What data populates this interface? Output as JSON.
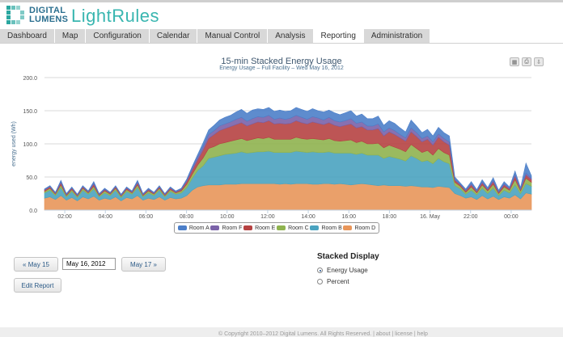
{
  "header": {
    "logo_line1": "DIGITAL",
    "logo_line2": "LUMENS",
    "app_name": "LightRules"
  },
  "tabs": [
    {
      "label": "Dashboard"
    },
    {
      "label": "Map"
    },
    {
      "label": "Configuration"
    },
    {
      "label": "Calendar"
    },
    {
      "label": "Manual Control"
    },
    {
      "label": "Analysis"
    },
    {
      "label": "Reporting",
      "active": true
    },
    {
      "label": "Administration"
    }
  ],
  "chart_data": {
    "type": "area",
    "stacked": true,
    "title": "15-min Stacked Energy Usage",
    "subtitle": "Energy Usage – Full Facility – Wed May 16, 2012",
    "ylabel": "energy used (Wh)",
    "ylim": [
      0,
      200
    ],
    "yticks": [
      "0.0",
      "50.0",
      "100.0",
      "150.0",
      "200.0"
    ],
    "xtick_labels": [
      "02:00",
      "04:00",
      "06:00",
      "08:00",
      "10:00",
      "12:00",
      "14:00",
      "16:00",
      "18:00",
      "16. May",
      "22:00",
      "00:00"
    ],
    "xtick_positions_hours": [
      2,
      4,
      6,
      8,
      10,
      12,
      14,
      16,
      18,
      20,
      22,
      24
    ],
    "x_range_hours": [
      1,
      25
    ],
    "grid": true,
    "legend_position": "bottom",
    "series": [
      {
        "name": "Room D",
        "color": "#e8965a",
        "values": [
          18,
          20,
          16,
          22,
          15,
          19,
          14,
          20,
          17,
          21,
          15,
          18,
          16,
          20,
          14,
          19,
          17,
          22,
          15,
          18,
          16,
          20,
          15,
          19,
          17,
          18,
          22,
          30,
          35,
          37,
          38,
          38,
          38,
          39,
          39,
          39,
          40,
          40,
          40,
          40,
          40,
          40,
          40,
          39,
          40,
          39,
          40,
          40,
          40,
          39,
          39,
          40,
          40,
          39,
          40,
          39,
          38,
          39,
          40,
          39,
          38,
          37,
          38,
          37,
          37,
          37,
          36,
          37,
          36,
          35,
          35,
          34,
          36,
          35,
          34,
          25,
          22,
          18,
          20,
          16,
          22,
          17,
          21,
          16,
          20,
          18,
          23,
          17,
          26,
          24
        ]
      },
      {
        "name": "Room B",
        "color": "#4aa3c0",
        "values": [
          8,
          10,
          6,
          12,
          5,
          9,
          5,
          10,
          7,
          11,
          5,
          8,
          6,
          10,
          5,
          9,
          7,
          12,
          5,
          8,
          6,
          10,
          5,
          9,
          7,
          8,
          12,
          18,
          25,
          30,
          40,
          42,
          44,
          45,
          46,
          47,
          48,
          46,
          47,
          48,
          48,
          49,
          47,
          48,
          47,
          48,
          49,
          48,
          47,
          49,
          48,
          47,
          48,
          47,
          46,
          47,
          48,
          45,
          46,
          44,
          45,
          46,
          40,
          44,
          42,
          40,
          38,
          45,
          42,
          38,
          40,
          36,
          42,
          38,
          36,
          12,
          10,
          6,
          10,
          7,
          11,
          8,
          12,
          6,
          10,
          8,
          15,
          8,
          14,
          12
        ]
      },
      {
        "name": "Room C",
        "color": "#8fb34f",
        "values": [
          2,
          3,
          2,
          4,
          2,
          3,
          2,
          3,
          2,
          4,
          2,
          3,
          2,
          3,
          2,
          3,
          2,
          4,
          2,
          3,
          2,
          3,
          2,
          3,
          2,
          3,
          5,
          6,
          8,
          12,
          15,
          16,
          18,
          18,
          19,
          20,
          20,
          19,
          20,
          21,
          20,
          21,
          20,
          20,
          20,
          20,
          21,
          20,
          20,
          20,
          20,
          19,
          20,
          19,
          18,
          19,
          20,
          18,
          18,
          17,
          17,
          18,
          16,
          17,
          16,
          15,
          14,
          17,
          15,
          14,
          15,
          13,
          15,
          14,
          13,
          5,
          4,
          3,
          5,
          3,
          5,
          4,
          6,
          3,
          5,
          4,
          8,
          4,
          8,
          6
        ]
      },
      {
        "name": "Room E",
        "color": "#b64242",
        "values": [
          2,
          2,
          1,
          3,
          1,
          2,
          1,
          2,
          1,
          3,
          1,
          2,
          1,
          2,
          1,
          2,
          1,
          3,
          1,
          2,
          1,
          2,
          1,
          2,
          1,
          2,
          4,
          6,
          8,
          12,
          15,
          18,
          20,
          21,
          22,
          23,
          24,
          22,
          23,
          24,
          24,
          25,
          23,
          24,
          23,
          24,
          25,
          24,
          23,
          25,
          24,
          23,
          24,
          23,
          22,
          23,
          24,
          22,
          22,
          21,
          21,
          22,
          18,
          20,
          19,
          17,
          16,
          19,
          18,
          16,
          17,
          15,
          17,
          16,
          15,
          3,
          2,
          2,
          3,
          2,
          3,
          2,
          4,
          2,
          3,
          2,
          5,
          2,
          5,
          4
        ]
      },
      {
        "name": "Room F",
        "color": "#7a62a8",
        "values": [
          1,
          1,
          1,
          2,
          1,
          1,
          1,
          1,
          1,
          2,
          1,
          1,
          1,
          1,
          1,
          1,
          1,
          2,
          1,
          1,
          1,
          1,
          1,
          1,
          1,
          1,
          2,
          3,
          4,
          5,
          6,
          6,
          7,
          7,
          7,
          8,
          8,
          7,
          8,
          8,
          8,
          8,
          7,
          8,
          7,
          8,
          8,
          8,
          7,
          8,
          8,
          7,
          8,
          7,
          7,
          7,
          8,
          7,
          7,
          6,
          6,
          7,
          6,
          6,
          6,
          5,
          5,
          6,
          6,
          5,
          5,
          5,
          5,
          5,
          5,
          2,
          1,
          1,
          2,
          1,
          2,
          1,
          2,
          1,
          2,
          1,
          3,
          1,
          3,
          2
        ]
      },
      {
        "name": "Room A",
        "color": "#4c7fc9",
        "values": [
          1,
          1,
          1,
          2,
          1,
          1,
          1,
          1,
          1,
          2,
          1,
          1,
          1,
          1,
          1,
          1,
          1,
          2,
          1,
          1,
          1,
          1,
          1,
          1,
          1,
          1,
          2,
          3,
          4,
          6,
          7,
          8,
          9,
          10,
          10,
          11,
          12,
          12,
          13,
          12,
          12,
          12,
          12,
          12,
          12,
          11,
          12,
          12,
          12,
          12,
          11,
          12,
          11,
          12,
          11,
          12,
          12,
          11,
          12,
          11,
          11,
          12,
          10,
          11,
          11,
          10,
          9,
          12,
          10,
          9,
          10,
          9,
          10,
          9,
          9,
          3,
          2,
          2,
          3,
          2,
          3,
          2,
          4,
          2,
          3,
          2,
          5,
          2,
          15,
          4
        ]
      }
    ]
  },
  "legend_items": [
    {
      "label": "Room A",
      "color": "#4c7fc9"
    },
    {
      "label": "Room F",
      "color": "#7a62a8"
    },
    {
      "label": "Room E",
      "color": "#b64242"
    },
    {
      "label": "Room C",
      "color": "#8fb34f"
    },
    {
      "label": "Room B",
      "color": "#4aa3c0"
    },
    {
      "label": "Room D",
      "color": "#e8965a"
    }
  ],
  "controls": {
    "prev_label": "« May 15",
    "date_value": "May 16, 2012",
    "next_label": "May 17 »",
    "edit_label": "Edit Report"
  },
  "display": {
    "title": "Stacked Display",
    "option1": "Energy Usage",
    "option2": "Percent"
  },
  "footer": {
    "text": "© Copyright 2010–2012 Digital Lumens. All Rights Reserved. | about | license | help"
  }
}
